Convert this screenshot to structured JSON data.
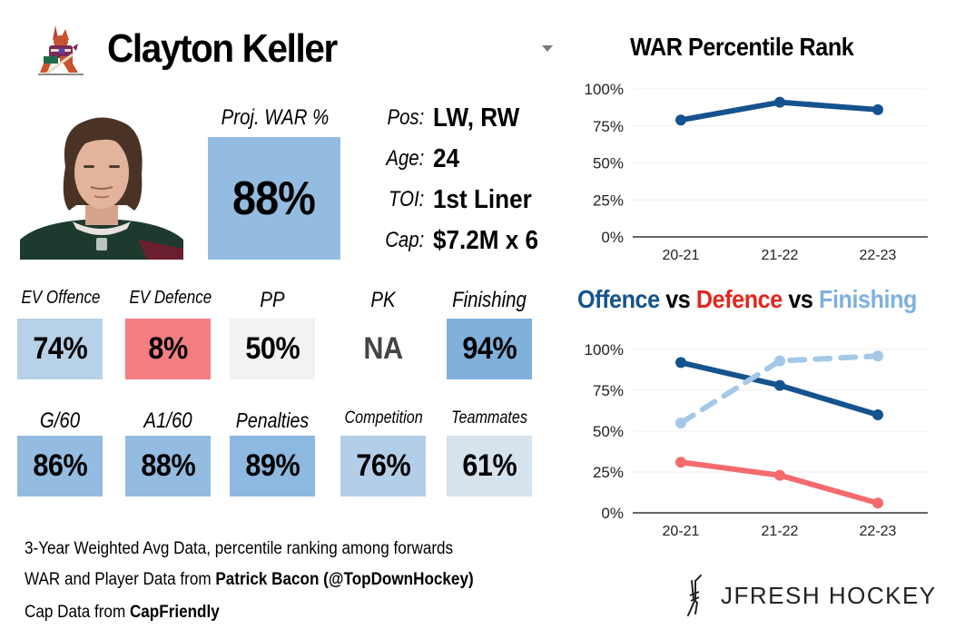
{
  "header": {
    "player_name": "Clayton Keller",
    "team_logo": "coyotes-kachina-logo",
    "dropdown_icon": "dropdown-arrow-icon"
  },
  "photo": {
    "alt": "player-headshot"
  },
  "projected_war": {
    "label": "Proj. WAR %",
    "value": "88%",
    "percentile": 88,
    "color": "#93bce0"
  },
  "info": [
    {
      "label": "Pos:",
      "value": "LW, RW"
    },
    {
      "label": "Age:",
      "value": "24"
    },
    {
      "label": "TOI:",
      "value": "1st Liner"
    },
    {
      "label": "Cap:",
      "value": "$7.2M x 6"
    }
  ],
  "tiles_row1": [
    {
      "label": "EV Offence",
      "value": "74%",
      "color": "#b7d1e8"
    },
    {
      "label": "EV Defence",
      "value": "8%",
      "color": "#f47e82"
    },
    {
      "label": "PP",
      "value": "50%",
      "color": "#f2f2f2"
    },
    {
      "label": "PK",
      "value": "NA",
      "color": "#ffffff",
      "text_color": "#444444"
    },
    {
      "label": "Finishing",
      "value": "94%",
      "color": "#80b1dd"
    }
  ],
  "tiles_row2": [
    {
      "label": "G/60",
      "value": "86%",
      "color": "#93bce0"
    },
    {
      "label": "A1/60",
      "value": "88%",
      "color": "#93bce0"
    },
    {
      "label": "Penalties",
      "value": "89%",
      "color": "#8db8df"
    },
    {
      "label": "Competition",
      "value": "76%",
      "color": "#b3cfe8"
    },
    {
      "label": "Teammates",
      "value": "61%",
      "color": "#d6e2ec"
    }
  ],
  "notes": {
    "line1": "3-Year Weighted Avg Data, percentile ranking among forwards",
    "line2_prefix": "WAR and Player Data from ",
    "line2_bold": "Patrick Bacon (@TopDownHockey)",
    "line3_prefix": "Cap Data from ",
    "line3_bold": "CapFriendly"
  },
  "brand": {
    "text": "JFRESH HOCKEY",
    "icon": "crossed-sticks-icon"
  },
  "chart_data": [
    {
      "type": "line",
      "title": "WAR Percentile Rank",
      "categories": [
        "20-21",
        "21-22",
        "22-23"
      ],
      "series": [
        {
          "name": "WAR",
          "values": [
            79,
            91,
            86
          ],
          "color": "#15538f",
          "dashed": false
        }
      ],
      "yticks": [
        "0%",
        "25%",
        "50%",
        "75%",
        "100%"
      ],
      "ylim": [
        0,
        100
      ],
      "xlabel": "",
      "ylabel": "",
      "grid": true,
      "legend": "none"
    },
    {
      "type": "line",
      "title_parts": [
        {
          "text": "Offence",
          "color": "#15538f"
        },
        {
          "text": " vs ",
          "color": "#000000"
        },
        {
          "text": "Defence",
          "color": "#e0281e"
        },
        {
          "text": " vs ",
          "color": "#000000"
        },
        {
          "text": "Finishing",
          "color": "#7fb1df"
        }
      ],
      "title": "Offence vs Defence vs Finishing",
      "categories": [
        "20-21",
        "21-22",
        "22-23"
      ],
      "series": [
        {
          "name": "Offence",
          "values": [
            92,
            78,
            60
          ],
          "color": "#15538f",
          "dashed": false
        },
        {
          "name": "Defence",
          "values": [
            31,
            23,
            6
          ],
          "color": "#f46b6e",
          "dashed": false
        },
        {
          "name": "Finishing",
          "values": [
            55,
            93,
            96
          ],
          "color": "#a4c8e8",
          "dashed": true
        }
      ],
      "yticks": [
        "0%",
        "25%",
        "50%",
        "75%",
        "100%"
      ],
      "ylim": [
        0,
        100
      ],
      "xlabel": "",
      "ylabel": "",
      "grid": true,
      "legend": "title-colored"
    }
  ]
}
